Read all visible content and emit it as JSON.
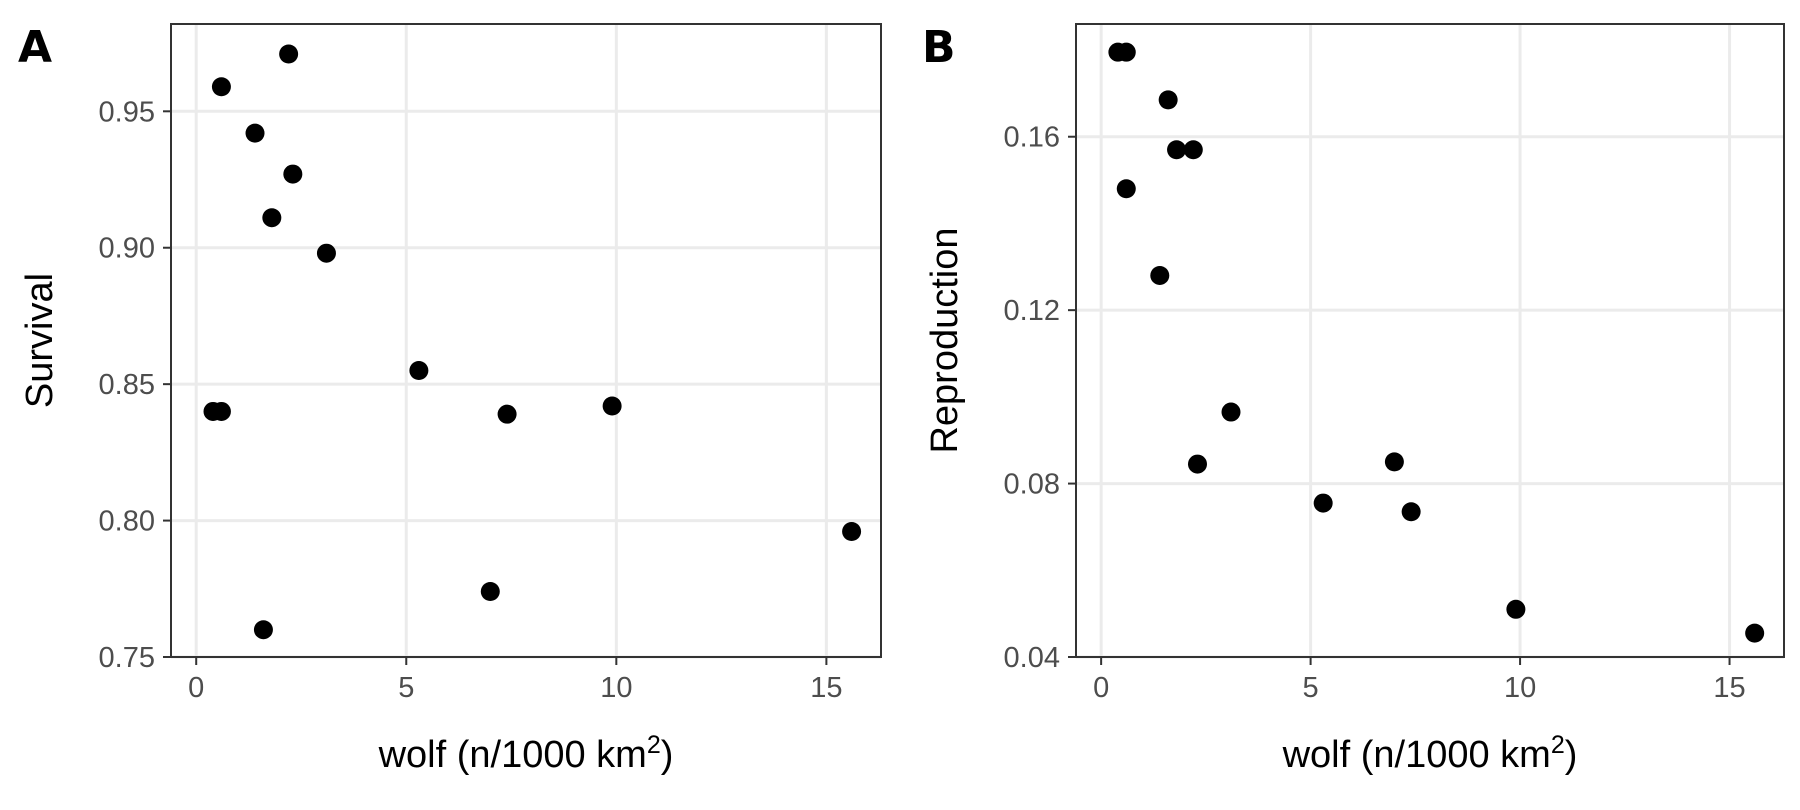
{
  "chart_data": [
    {
      "type": "scatter",
      "panel": "A",
      "xlabel": "wolf (n/1000 km",
      "xlabel_sup": "2",
      "xlabel_end": ")",
      "ylabel": "Survival",
      "xlim": [
        -0.6,
        16.3
      ],
      "ylim": [
        0.75,
        0.982
      ],
      "xticks": [
        0,
        5,
        10,
        15
      ],
      "xtick_labels": [
        "0",
        "5",
        "10",
        "15"
      ],
      "yticks": [
        0.75,
        0.8,
        0.85,
        0.9,
        0.95
      ],
      "ytick_labels": [
        "0.75",
        "0.80",
        "0.85",
        "0.90",
        "0.95"
      ],
      "grid": true,
      "points": [
        {
          "x": 0.4,
          "y": 0.84
        },
        {
          "x": 0.6,
          "y": 0.84
        },
        {
          "x": 0.6,
          "y": 0.959
        },
        {
          "x": 1.4,
          "y": 0.942
        },
        {
          "x": 1.6,
          "y": 0.76
        },
        {
          "x": 1.8,
          "y": 0.911
        },
        {
          "x": 2.2,
          "y": 0.971
        },
        {
          "x": 2.3,
          "y": 0.927
        },
        {
          "x": 3.1,
          "y": 0.898
        },
        {
          "x": 5.3,
          "y": 0.855
        },
        {
          "x": 7.0,
          "y": 0.774
        },
        {
          "x": 7.4,
          "y": 0.839
        },
        {
          "x": 9.9,
          "y": 0.842
        },
        {
          "x": 15.6,
          "y": 0.796
        }
      ]
    },
    {
      "type": "scatter",
      "panel": "B",
      "xlabel": "wolf (n/1000 km",
      "xlabel_sup": "2",
      "xlabel_end": ")",
      "ylabel": "Reproduction",
      "xlim": [
        -0.6,
        16.3
      ],
      "ylim": [
        0.04,
        0.186
      ],
      "xticks": [
        0,
        5,
        10,
        15
      ],
      "xtick_labels": [
        "0",
        "5",
        "10",
        "15"
      ],
      "yticks": [
        0.04,
        0.08,
        0.12,
        0.16
      ],
      "ytick_labels": [
        "0.04",
        "0.08",
        "0.12",
        "0.16"
      ],
      "grid": true,
      "points": [
        {
          "x": 0.4,
          "y": 0.1795
        },
        {
          "x": 0.6,
          "y": 0.1795
        },
        {
          "x": 0.6,
          "y": 0.148
        },
        {
          "x": 1.4,
          "y": 0.128
        },
        {
          "x": 1.6,
          "y": 0.1685
        },
        {
          "x": 1.8,
          "y": 0.157
        },
        {
          "x": 2.2,
          "y": 0.157
        },
        {
          "x": 2.3,
          "y": 0.0845
        },
        {
          "x": 3.1,
          "y": 0.0965
        },
        {
          "x": 5.3,
          "y": 0.0755
        },
        {
          "x": 7.0,
          "y": 0.085
        },
        {
          "x": 7.4,
          "y": 0.0735
        },
        {
          "x": 9.9,
          "y": 0.051
        },
        {
          "x": 15.6,
          "y": 0.0455
        }
      ]
    }
  ]
}
